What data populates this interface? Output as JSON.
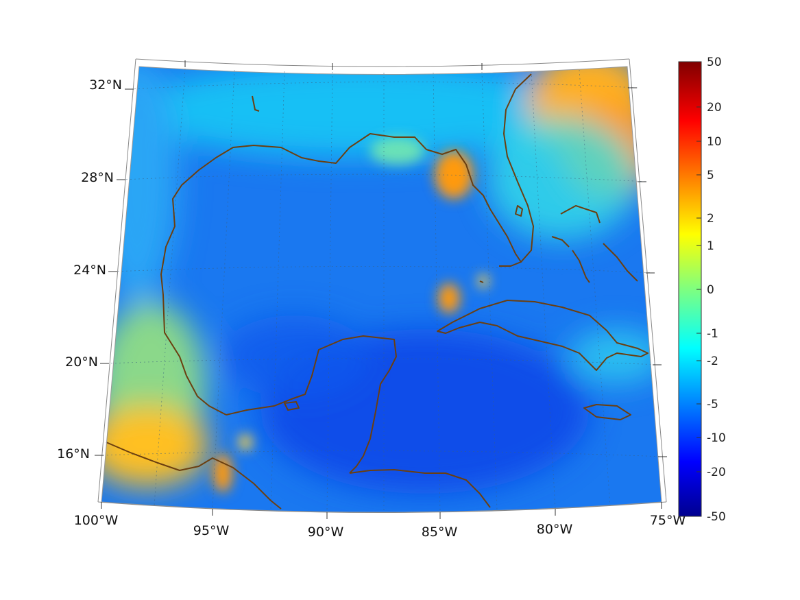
{
  "map": {
    "projection": "conic",
    "lon_range": [
      -100,
      -75
    ],
    "lat_range": [
      14,
      33
    ],
    "coastline_color": "#6b3f10",
    "gridline_style": "dotted",
    "lat_ticks": [
      {
        "value": 32,
        "label": "32°N"
      },
      {
        "value": 28,
        "label": "28°N"
      },
      {
        "value": 24,
        "label": "24°N"
      },
      {
        "value": 20,
        "label": "20°N"
      },
      {
        "value": 16,
        "label": "16°N"
      }
    ],
    "lon_ticks": [
      {
        "value": -100,
        "label": "100°W"
      },
      {
        "value": -95,
        "label": "95°W"
      },
      {
        "value": -90,
        "label": "90°W"
      },
      {
        "value": -85,
        "label": "85°W"
      },
      {
        "value": -80,
        "label": "80°W"
      },
      {
        "value": -75,
        "label": "75°W"
      }
    ],
    "colormap": "jet"
  },
  "colorbar": {
    "min": -50,
    "max": 50,
    "scale": "symmetric-log",
    "ticks": [
      "50",
      "20",
      "10",
      "5",
      "2",
      "1",
      "0",
      "-1",
      "-2",
      "-5",
      "-10",
      "-20",
      "-50"
    ]
  }
}
